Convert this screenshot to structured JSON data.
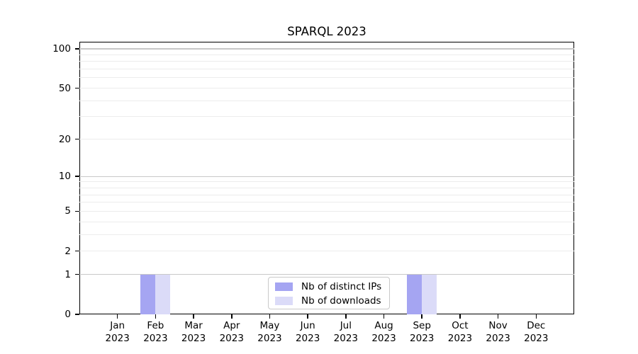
{
  "chart_data": {
    "type": "bar",
    "title": "SPARQL 2023",
    "categories": [
      "Jan",
      "Feb",
      "Mar",
      "Apr",
      "May",
      "Jun",
      "Jul",
      "Aug",
      "Sep",
      "Oct",
      "Nov",
      "Dec"
    ],
    "category_year": "2023",
    "series": [
      {
        "name": "Nb of distinct IPs",
        "color": "#a5a5f2",
        "values": [
          0,
          1,
          0,
          0,
          0,
          0,
          0,
          0,
          1,
          0,
          0,
          0
        ]
      },
      {
        "name": "Nb of downloads",
        "color": "#dbdbf8",
        "values": [
          0,
          1,
          0,
          0,
          0,
          0,
          0,
          0,
          1,
          0,
          0,
          0
        ]
      }
    ],
    "xlabel": "",
    "ylabel": "",
    "y_scale": "log1p",
    "y_ticks": [
      0,
      1,
      2,
      5,
      10,
      20,
      50,
      100
    ],
    "y_minor_gridlines": [
      3,
      4,
      6,
      7,
      8,
      9,
      30,
      40,
      60,
      70,
      80,
      90
    ],
    "y_power_ticks": [
      1,
      10,
      100
    ],
    "ylim": [
      0,
      113
    ],
    "grid": "horizontal",
    "legend_position": "lower center",
    "colors": {
      "axis": "#000000",
      "major_gridline": "#c8c8c8",
      "minor_gridline": "#ececec",
      "background": "#ffffff",
      "text": "#000000"
    }
  }
}
